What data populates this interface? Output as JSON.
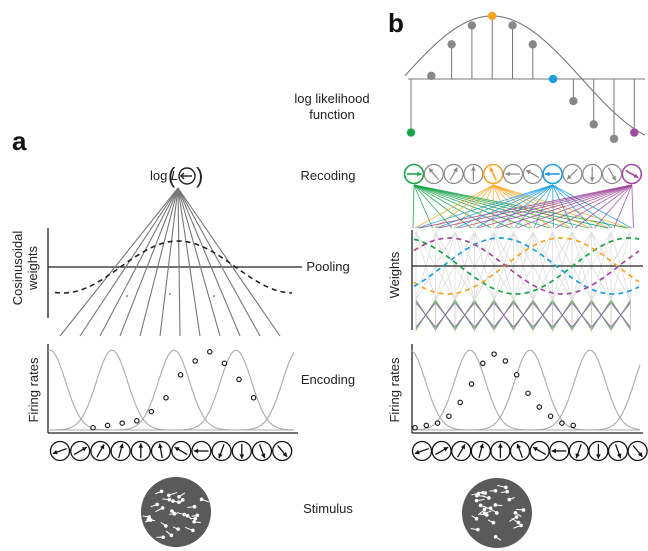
{
  "panels": {
    "a": "a",
    "b": "b"
  },
  "stage_labels": {
    "loglik_line1": "log likelihood",
    "loglik_line2": "function",
    "recoding": "Recoding",
    "pooling": "Pooling",
    "encoding": "Encoding",
    "stimulus": "Stimulus"
  },
  "panel_a": {
    "top_label_prefix": "log ",
    "top_label_italic": "L",
    "ylabel_weights_line1": "Cosinusoidal",
    "ylabel_weights_line2": "weights",
    "ylabel_rates": "Firing rates"
  },
  "panel_b": {
    "ylabel_weights": "Weights",
    "ylabel_rates": "Firing rates",
    "highlight_colors": {
      "green": "#1aa34a",
      "orange": "#f5a623",
      "blue": "#1a9fe0",
      "purple": "#a04a9c"
    }
  },
  "neurons": {
    "count": 12
  },
  "chart_data": {
    "type": "scatter",
    "firing_rates_a": [
      1,
      2,
      3,
      4,
      8,
      14,
      24,
      30,
      34,
      29,
      22,
      14
    ],
    "loglik_b": [
      -0.85,
      0.05,
      0.55,
      0.85,
      1.0,
      0.85,
      0.55,
      0.0,
      -0.35,
      -0.72,
      -0.95,
      -0.85
    ]
  }
}
